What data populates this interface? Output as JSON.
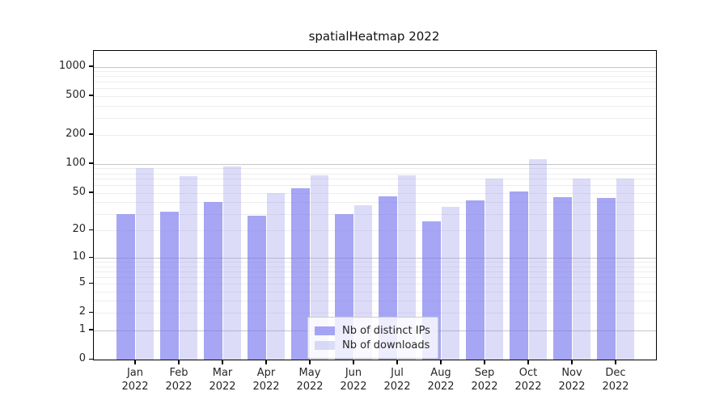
{
  "title": "spatialHeatmap 2022",
  "chart_data": {
    "type": "bar",
    "title": "spatialHeatmap 2022",
    "categories": [
      "Jan",
      "Feb",
      "Mar",
      "Apr",
      "May",
      "Jun",
      "Jul",
      "Aug",
      "Sep",
      "Oct",
      "Nov",
      "Dec"
    ],
    "x_year_label": "2022",
    "series": [
      {
        "name": "Nb of distinct IPs",
        "color": "#7676ee",
        "alpha": 0.65,
        "values": [
          30,
          32,
          40,
          29,
          56,
          30,
          46,
          25,
          42,
          52,
          45,
          44
        ]
      },
      {
        "name": "Nb of downloads",
        "color": "#9b9beb",
        "alpha": 0.35,
        "values": [
          90,
          75,
          94,
          50,
          76,
          37,
          76,
          36,
          70,
          113,
          70,
          70
        ]
      }
    ],
    "yscale": "log1p",
    "ytick_values": [
      1000,
      500,
      200,
      100,
      50,
      20,
      10,
      5,
      2,
      1,
      0
    ],
    "ylim": [
      0,
      1200
    ],
    "grid": {
      "major_at_powers_of_10": true,
      "major_color": "#c6c6c6",
      "minor_color": "#ededed"
    },
    "legend": {
      "position": "bottom-center",
      "labels": [
        "Nb of distinct IPs",
        "Nb of downloads"
      ]
    },
    "colors": {
      "spine": "#000000",
      "tick_text": "#262626",
      "background": "#ffffff"
    }
  }
}
